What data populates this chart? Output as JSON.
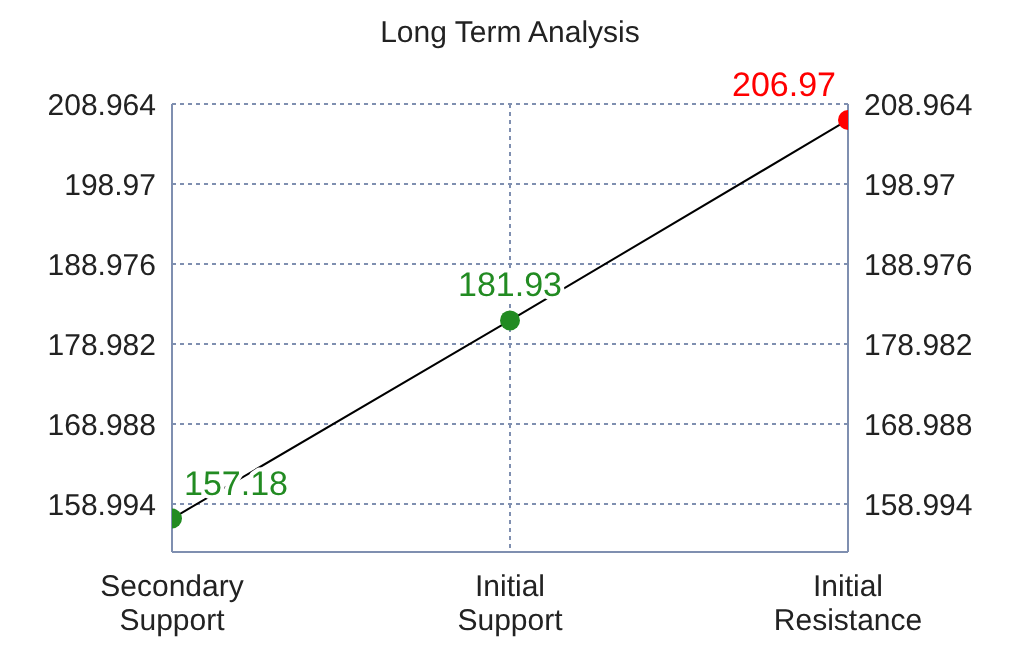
{
  "chart_data": {
    "type": "line",
    "title": "Long Term Analysis",
    "categories": [
      "Secondary Support",
      "Initial Support",
      "Initial Resistance"
    ],
    "series": [
      {
        "color": "#000000",
        "colors": [
          "#228b22",
          "#228b22",
          "#ff0000"
        ],
        "values": [
          157.18,
          181.93,
          206.97
        ]
      }
    ],
    "ylim": [
      153.0,
      208.964
    ],
    "yticks": [
      158.994,
      168.988,
      178.982,
      188.976,
      198.97,
      208.964
    ],
    "y2lim": [
      153.0,
      208.964
    ],
    "y2ticks": [
      158.994,
      168.988,
      178.982,
      188.976,
      198.97,
      208.964
    ],
    "grid": true,
    "marker": "circle",
    "line_style": "solid",
    "data_labels": true,
    "legend": false
  }
}
